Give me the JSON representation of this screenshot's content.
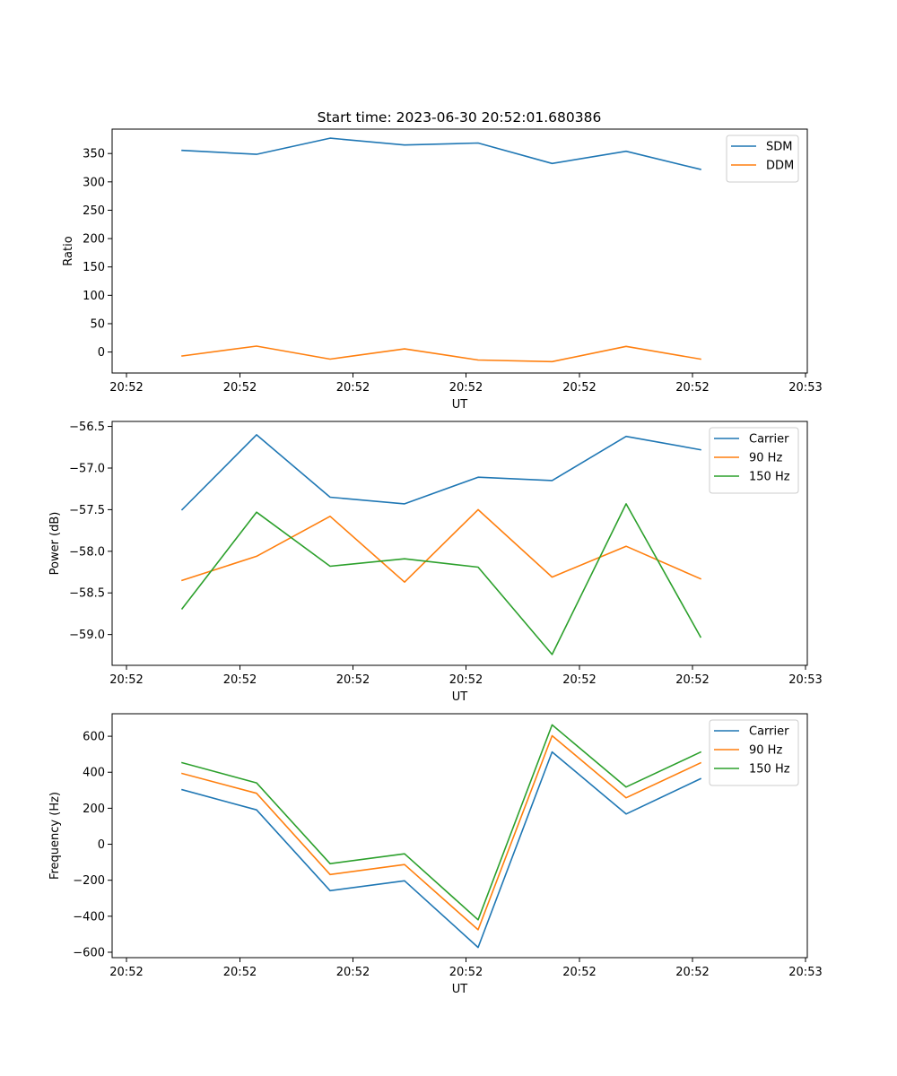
{
  "title": "Start time: 2023-06-30 20:52:01.680386",
  "colors": {
    "c0": "#1f77b4",
    "c1": "#ff7f0e",
    "c2": "#2ca02c"
  },
  "chart_data": [
    {
      "type": "line",
      "title": "Start time: 2023-06-30 20:52:01.680386",
      "xlabel": "UT",
      "ylabel": "Ratio",
      "xticks": [
        "20:52",
        "20:52",
        "20:52",
        "20:52",
        "20:52",
        "20:52",
        "20:53"
      ],
      "yticks": [
        0,
        50,
        100,
        150,
        200,
        250,
        300,
        350
      ],
      "ylim": [
        -37,
        393
      ],
      "legend": "top-right",
      "series": [
        {
          "name": "SDM",
          "color": "#1f77b4",
          "values": [
            355.5,
            348.5,
            377,
            365,
            368.5,
            332.5,
            354,
            322
          ]
        },
        {
          "name": "DDM",
          "color": "#ff7f0e",
          "values": [
            -7,
            10.5,
            -12.5,
            5.5,
            -14,
            -17,
            10,
            -12.5
          ]
        }
      ]
    },
    {
      "type": "line",
      "xlabel": "UT",
      "ylabel": "Power (dB)",
      "xticks": [
        "20:52",
        "20:52",
        "20:52",
        "20:52",
        "20:52",
        "20:52",
        "20:53"
      ],
      "yticks": [
        "−59.0",
        "−58.5",
        "−58.0",
        "−57.5",
        "−57.0",
        "−56.5"
      ],
      "ytick_values": [
        -59.0,
        -58.5,
        -58.0,
        -57.5,
        -57.0,
        -56.5
      ],
      "ylim": [
        -59.37,
        -56.44
      ],
      "legend": "top-right",
      "series": [
        {
          "name": "Carrier",
          "color": "#1f77b4",
          "values": [
            -57.5,
            -56.6,
            -57.35,
            -57.43,
            -57.11,
            -57.15,
            -56.62,
            -56.78
          ]
        },
        {
          "name": "90 Hz",
          "color": "#ff7f0e",
          "values": [
            -58.35,
            -58.06,
            -57.58,
            -58.37,
            -57.5,
            -58.31,
            -57.94,
            -58.33
          ]
        },
        {
          "name": "150 Hz",
          "color": "#2ca02c",
          "values": [
            -58.69,
            -57.53,
            -58.18,
            -58.09,
            -58.19,
            -59.24,
            -57.43,
            -59.03
          ]
        }
      ]
    },
    {
      "type": "line",
      "xlabel": "UT",
      "ylabel": "Frequency (Hz)",
      "xticks": [
        "20:52",
        "20:52",
        "20:52",
        "20:52",
        "20:52",
        "20:52",
        "20:53"
      ],
      "yticks": [
        "−600",
        "−400",
        "−200",
        "0",
        "200",
        "400",
        "600"
      ],
      "ytick_values": [
        -600,
        -400,
        -200,
        0,
        200,
        400,
        600
      ],
      "ylim": [
        -630,
        725
      ],
      "legend": "top-right",
      "series": [
        {
          "name": "Carrier",
          "color": "#1f77b4",
          "values": [
            303,
            191,
            -258,
            -203,
            -573,
            513,
            168,
            364
          ]
        },
        {
          "name": "90 Hz",
          "color": "#ff7f0e",
          "values": [
            393,
            283,
            -168,
            -113,
            -475,
            603,
            258,
            452
          ]
        },
        {
          "name": "150 Hz",
          "color": "#2ca02c",
          "values": [
            453,
            341,
            -108,
            -53,
            -420,
            663,
            318,
            512
          ]
        }
      ]
    }
  ]
}
